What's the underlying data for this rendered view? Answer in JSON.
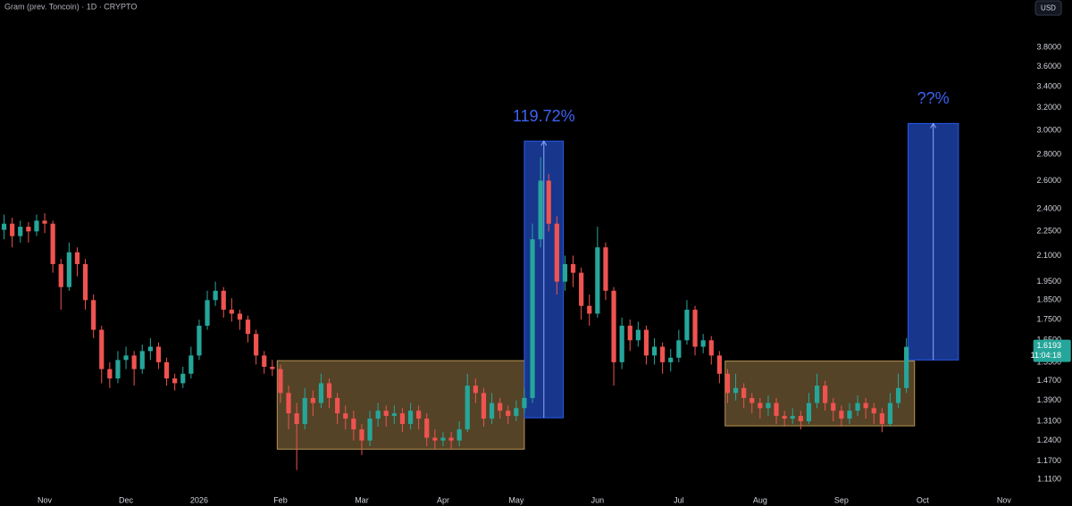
{
  "chart_data": {
    "type": "candlestick",
    "title": "Gram (prev. Toncoin) · 1D · CRYPTO",
    "currency": "USD",
    "countdown": "11:04:18",
    "up_color": "#26a69a",
    "down_color": "#ef5350",
    "log_scale": true,
    "grid": false,
    "ylim": [
      1.08,
      4.35
    ],
    "yticks": [
      {
        "value": 1.11,
        "label": "1.1100"
      },
      {
        "value": 1.17,
        "label": "1.1700"
      },
      {
        "value": 1.24,
        "label": "1.2400"
      },
      {
        "value": 1.31,
        "label": "1.3100"
      },
      {
        "value": 1.39,
        "label": "1.3900"
      },
      {
        "value": 1.47,
        "label": "1.4700"
      },
      {
        "value": 1.55,
        "label": "1.5500"
      },
      {
        "value": 1.65,
        "label": "1.6500"
      },
      {
        "value": 1.75,
        "label": "1.7500"
      },
      {
        "value": 1.85,
        "label": "1.8500"
      },
      {
        "value": 1.95,
        "label": "1.9500"
      },
      {
        "value": 2.1,
        "label": "2.1000"
      },
      {
        "value": 2.25,
        "label": "2.2500"
      },
      {
        "value": 2.4,
        "label": "2.4000"
      },
      {
        "value": 2.6,
        "label": "2.6000"
      },
      {
        "value": 2.8,
        "label": "2.8000"
      },
      {
        "value": 3,
        "label": "3.0000"
      },
      {
        "value": 3.2,
        "label": "3.2000"
      },
      {
        "value": 3.4,
        "label": "3.4000"
      },
      {
        "value": 3.6,
        "label": "3.6000"
      },
      {
        "value": 3.8,
        "label": "3.8000"
      }
    ],
    "categories": [
      null,
      null,
      null,
      null,
      null,
      "Nov",
      null,
      null,
      null,
      null,
      null,
      null,
      null,
      null,
      null,
      "Dec",
      null,
      null,
      null,
      null,
      null,
      null,
      null,
      null,
      "2026",
      null,
      null,
      null,
      null,
      null,
      null,
      null,
      null,
      null,
      "Feb",
      null,
      null,
      null,
      null,
      null,
      null,
      null,
      null,
      null,
      "Mar",
      null,
      null,
      null,
      null,
      null,
      null,
      null,
      null,
      null,
      "Apr",
      null,
      null,
      null,
      null,
      null,
      null,
      null,
      null,
      "May",
      null,
      null,
      null,
      null,
      null,
      null,
      null,
      null,
      null,
      "Jun",
      null,
      null,
      null,
      null,
      null,
      null,
      null,
      null,
      null,
      "Jul",
      null,
      null,
      null,
      null,
      null,
      null,
      null,
      null,
      null,
      "Aug",
      null,
      null,
      null,
      null,
      null,
      null,
      null,
      null,
      null,
      "Sep",
      null,
      null,
      null,
      null,
      null,
      null,
      null,
      null,
      null,
      "Oct",
      null,
      null,
      null,
      null,
      null,
      null,
      null,
      null,
      null,
      "Nov",
      null,
      null,
      null
    ],
    "open": [
      2.26,
      2.3,
      2.22,
      2.28,
      2.25,
      2.32,
      2.3,
      2.05,
      1.92,
      2.12,
      2.05,
      1.85,
      1.7,
      1.52,
      1.48,
      1.56,
      1.58,
      1.52,
      1.6,
      1.62,
      1.55,
      1.48,
      1.46,
      1.5,
      1.58,
      1.72,
      1.85,
      1.9,
      1.8,
      1.78,
      1.75,
      1.68,
      1.58,
      1.53,
      1.52,
      1.42,
      1.34,
      1.3,
      1.4,
      1.38,
      1.46,
      1.4,
      1.34,
      1.32,
      1.28,
      1.24,
      1.32,
      1.35,
      1.33,
      1.34,
      1.3,
      1.35,
      1.32,
      1.25,
      1.24,
      1.25,
      1.24,
      1.28,
      1.45,
      1.42,
      1.32,
      1.38,
      1.35,
      1.33,
      1.36,
      1.4,
      2.2,
      2.6,
      2.3,
      1.95,
      2.05,
      2.0,
      1.82,
      1.78,
      2.15,
      1.9,
      1.55,
      1.72,
      1.65,
      1.7,
      1.58,
      1.62,
      1.55,
      1.57,
      1.65,
      1.8,
      1.62,
      1.65,
      1.58,
      1.5,
      1.42,
      1.44,
      1.4,
      1.38,
      1.36,
      1.38,
      1.33,
      1.32,
      1.33,
      1.31,
      1.38,
      1.45,
      1.38,
      1.35,
      1.32,
      1.35,
      1.38,
      1.36,
      1.34,
      1.3,
      1.38,
      1.44,
      null,
      null,
      null,
      null,
      null,
      null,
      null,
      null,
      null,
      null,
      null,
      null,
      null,
      null,
      null
    ],
    "high": [
      2.36,
      2.34,
      2.32,
      2.31,
      2.36,
      2.37,
      2.32,
      2.08,
      2.18,
      2.15,
      2.08,
      1.88,
      1.72,
      1.55,
      1.6,
      1.62,
      1.6,
      1.63,
      1.66,
      1.64,
      1.57,
      1.5,
      1.53,
      1.62,
      1.75,
      1.9,
      1.95,
      1.92,
      1.86,
      1.8,
      1.77,
      1.7,
      1.6,
      1.56,
      1.54,
      1.45,
      1.38,
      1.44,
      1.43,
      1.5,
      1.48,
      1.42,
      1.37,
      1.35,
      1.3,
      1.35,
      1.38,
      1.37,
      1.37,
      1.36,
      1.38,
      1.37,
      1.34,
      1.28,
      1.27,
      1.27,
      1.31,
      1.5,
      1.48,
      1.44,
      1.42,
      1.4,
      1.37,
      1.39,
      1.44,
      2.3,
      2.78,
      2.65,
      2.35,
      2.1,
      2.1,
      2.03,
      1.88,
      2.28,
      2.18,
      1.92,
      1.76,
      1.75,
      1.74,
      1.72,
      1.66,
      1.64,
      1.61,
      1.7,
      1.85,
      1.82,
      1.68,
      1.67,
      1.6,
      1.52,
      1.5,
      1.46,
      1.42,
      1.4,
      1.41,
      1.4,
      1.35,
      1.36,
      1.35,
      1.42,
      1.5,
      1.47,
      1.4,
      1.37,
      1.38,
      1.41,
      1.4,
      1.38,
      1.36,
      1.42,
      1.5,
      1.66,
      null,
      null,
      null,
      null,
      null,
      null,
      null,
      null,
      null,
      null,
      null,
      null,
      null,
      null,
      null
    ],
    "low": [
      2.2,
      2.15,
      2.18,
      2.18,
      2.22,
      2.24,
      2.0,
      1.8,
      1.9,
      1.98,
      1.8,
      1.66,
      1.46,
      1.44,
      1.46,
      1.52,
      1.45,
      1.5,
      1.56,
      1.52,
      1.45,
      1.43,
      1.44,
      1.48,
      1.56,
      1.7,
      1.82,
      1.76,
      1.74,
      1.7,
      1.64,
      1.54,
      1.5,
      1.49,
      1.38,
      1.28,
      1.14,
      1.28,
      1.33,
      1.36,
      1.36,
      1.3,
      1.28,
      1.24,
      1.19,
      1.22,
      1.29,
      1.29,
      1.3,
      1.27,
      1.28,
      1.28,
      1.22,
      1.21,
      1.22,
      1.21,
      1.22,
      1.27,
      1.38,
      1.29,
      1.3,
      1.32,
      1.3,
      1.31,
      1.34,
      1.38,
      2.15,
      2.25,
      1.88,
      1.9,
      1.92,
      1.75,
      1.72,
      1.76,
      1.85,
      1.45,
      1.52,
      1.6,
      1.62,
      1.54,
      1.54,
      1.5,
      1.51,
      1.55,
      1.63,
      1.58,
      1.59,
      1.54,
      1.46,
      1.38,
      1.39,
      1.36,
      1.34,
      1.32,
      1.33,
      1.3,
      1.29,
      1.3,
      1.28,
      1.3,
      1.36,
      1.35,
      1.31,
      1.29,
      1.3,
      1.33,
      1.32,
      1.3,
      1.27,
      1.29,
      1.36,
      1.42,
      null,
      null,
      null,
      null,
      null,
      null,
      null,
      null,
      null,
      null,
      null,
      null,
      null,
      null,
      null
    ],
    "close": [
      2.3,
      2.22,
      2.28,
      2.25,
      2.32,
      2.3,
      2.05,
      1.92,
      2.12,
      2.05,
      1.85,
      1.7,
      1.52,
      1.48,
      1.56,
      1.58,
      1.52,
      1.6,
      1.62,
      1.55,
      1.48,
      1.46,
      1.5,
      1.58,
      1.72,
      1.85,
      1.9,
      1.8,
      1.78,
      1.75,
      1.68,
      1.58,
      1.53,
      1.52,
      1.42,
      1.34,
      1.3,
      1.4,
      1.38,
      1.46,
      1.4,
      1.34,
      1.32,
      1.28,
      1.24,
      1.32,
      1.35,
      1.33,
      1.34,
      1.3,
      1.35,
      1.32,
      1.25,
      1.24,
      1.25,
      1.24,
      1.28,
      1.45,
      1.42,
      1.32,
      1.38,
      1.35,
      1.33,
      1.36,
      1.4,
      2.2,
      2.6,
      2.3,
      1.95,
      2.05,
      2.0,
      1.82,
      1.78,
      2.15,
      1.9,
      1.55,
      1.72,
      1.65,
      1.7,
      1.58,
      1.62,
      1.55,
      1.57,
      1.65,
      1.8,
      1.62,
      1.65,
      1.58,
      1.5,
      1.42,
      1.44,
      1.4,
      1.38,
      1.36,
      1.38,
      1.33,
      1.32,
      1.33,
      1.31,
      1.38,
      1.45,
      1.38,
      1.35,
      1.32,
      1.35,
      1.38,
      1.36,
      1.34,
      1.3,
      1.38,
      1.44,
      1.6193,
      null,
      null,
      null,
      null,
      null,
      null,
      null,
      null,
      null,
      null,
      null,
      null,
      null,
      null,
      null
    ],
    "boxes": [
      {
        "kind": "range",
        "color": "#c8a05a",
        "x": [
          33.6,
          64
        ],
        "y": [
          1.21,
          1.557
        ]
      },
      {
        "kind": "measure",
        "color": "#2962ff",
        "x": [
          64,
          68.8
        ],
        "y": [
          1.323,
          2.91
        ],
        "label": {
          "value": 119.72,
          "label": "119.72%"
        }
      },
      {
        "kind": "range",
        "color": "#c8a05a",
        "x": [
          88.7,
          112
        ],
        "y": [
          1.293,
          1.555
        ]
      },
      {
        "kind": "measure",
        "color": "#2962ff",
        "x": [
          111.2,
          117.4
        ],
        "y": [
          1.56,
          3.06
        ],
        "label": "??%"
      }
    ]
  }
}
